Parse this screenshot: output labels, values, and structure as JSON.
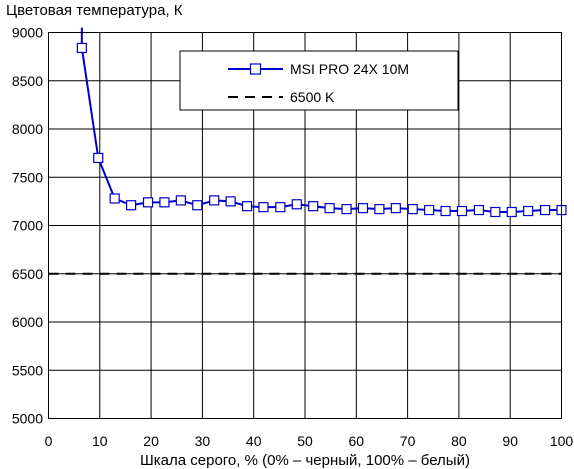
{
  "chart_data": {
    "type": "line",
    "ylabel": "Цветовая температура, К",
    "xlabel": "Шкала серого, % (0% – черный, 100% – белый)",
    "xlim": [
      0,
      100
    ],
    "ylim": [
      5000,
      9000
    ],
    "xticks": [
      0,
      10,
      20,
      30,
      40,
      50,
      60,
      70,
      80,
      90,
      100
    ],
    "yticks": [
      5000,
      5500,
      6000,
      6500,
      7000,
      7500,
      8000,
      8500,
      9000
    ],
    "grid": true,
    "legend_position": "top-center",
    "series": [
      {
        "name": "MSI PRO 24X 10M",
        "color": "#0000cc",
        "marker": "square-open",
        "line_only_segment": [
          [
            6.5,
            9050
          ],
          [
            6.5,
            8850
          ]
        ],
        "x": [
          6.5,
          9.7,
          12.9,
          16.1,
          19.4,
          22.6,
          25.8,
          29.0,
          32.3,
          35.5,
          38.7,
          41.9,
          45.2,
          48.4,
          51.6,
          54.8,
          58.1,
          61.3,
          64.5,
          67.7,
          71.0,
          74.2,
          77.4,
          80.6,
          83.9,
          87.1,
          90.3,
          93.5,
          96.8,
          100
        ],
        "y": [
          8840,
          7700,
          7280,
          7210,
          7240,
          7240,
          7260,
          7210,
          7260,
          7250,
          7200,
          7190,
          7190,
          7220,
          7200,
          7180,
          7170,
          7180,
          7170,
          7180,
          7170,
          7160,
          7150,
          7150,
          7160,
          7140,
          7140,
          7150,
          7160,
          7160
        ]
      },
      {
        "name": "6500 K",
        "color": "#000000",
        "style": "dashed",
        "x": [
          0,
          100
        ],
        "y": [
          6500,
          6500
        ]
      }
    ]
  }
}
